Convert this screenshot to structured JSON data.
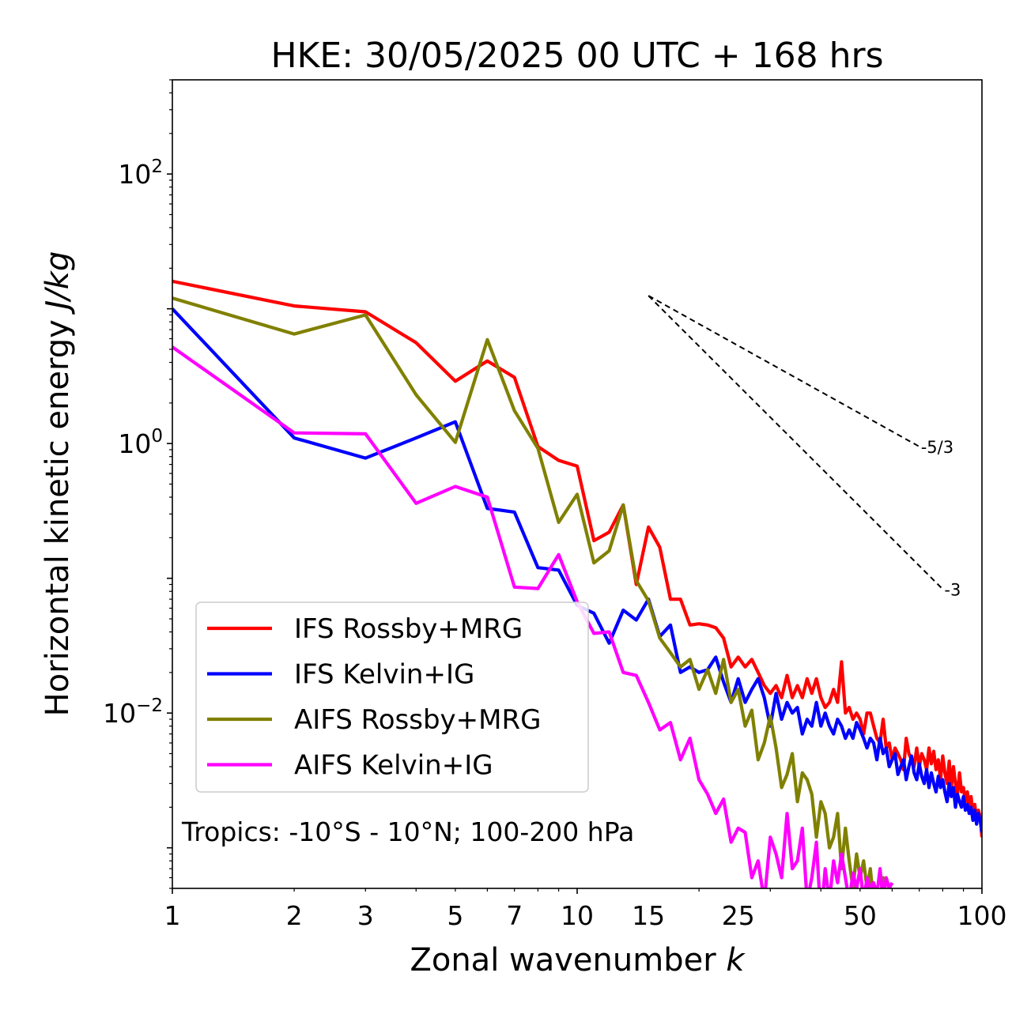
{
  "chart_data": {
    "type": "line",
    "title": "HKE: 30/05/2025 00 UTC + 168 hrs",
    "xlabel": "Zonal wavenumber ",
    "xlabel_italic": "k",
    "ylabel": "Horizontal kinetic energy ",
    "ylabel_italic": "J/kg",
    "x_scale": "log",
    "y_scale": "log",
    "xlim": [
      1,
      100
    ],
    "ylim": [
      0.0005,
      500
    ],
    "x_ticks": [
      {
        "value": 1,
        "label": "1"
      },
      {
        "value": 2,
        "label": "2"
      },
      {
        "value": 3,
        "label": "3"
      },
      {
        "value": 5,
        "label": "5"
      },
      {
        "value": 7,
        "label": "7"
      },
      {
        "value": 10,
        "label": "10"
      },
      {
        "value": 15,
        "label": "15"
      },
      {
        "value": 25,
        "label": "25"
      },
      {
        "value": 50,
        "label": "50"
      },
      {
        "value": 100,
        "label": "100"
      }
    ],
    "y_ticks": [
      {
        "value": 100,
        "base": "10",
        "exp": "2"
      },
      {
        "value": 1,
        "base": "10",
        "exp": "0"
      },
      {
        "value": 0.01,
        "base": "10",
        "exp": "−2"
      }
    ],
    "grid": false,
    "legend_position": "lower-left",
    "annotation": "Tropics: -10°S - 10°N; 100-200 hPa",
    "reference_slopes": [
      {
        "slope": -1.6667,
        "label": "-5/3",
        "x": [
          15,
          70
        ],
        "y": [
          12.5,
          0.95
        ]
      },
      {
        "slope": -3,
        "label": "-3",
        "x": [
          15,
          80
        ],
        "y": [
          12.5,
          0.083
        ]
      }
    ],
    "series": [
      {
        "name": "IFS Rossby+MRG",
        "color": "#ff0000",
        "x": [
          1,
          2,
          3,
          4,
          5,
          6,
          7,
          8,
          9,
          10,
          11,
          12,
          13,
          14,
          15,
          16,
          17,
          18,
          19,
          20,
          21,
          22,
          23,
          24,
          25,
          26,
          27,
          28,
          29,
          30,
          31,
          32,
          33,
          34,
          35,
          36,
          37,
          38,
          39,
          40,
          41,
          42,
          43,
          44,
          45,
          46,
          47,
          48,
          49,
          50,
          51,
          52,
          53,
          54,
          55,
          56,
          57,
          58,
          59,
          60,
          61,
          62,
          63,
          64,
          65,
          66,
          67,
          68,
          69,
          70,
          71,
          72,
          73,
          74,
          75,
          76,
          77,
          78,
          79,
          80,
          81,
          82,
          83,
          84,
          85,
          86,
          87,
          88,
          89,
          90,
          91,
          92,
          93,
          94,
          95,
          96,
          97,
          98,
          99,
          100
        ],
        "y": [
          16,
          10.5,
          9.5,
          5.6,
          2.9,
          4.1,
          3.1,
          0.95,
          0.75,
          0.68,
          0.19,
          0.22,
          0.35,
          0.09,
          0.24,
          0.17,
          0.07,
          0.07,
          0.045,
          0.046,
          0.045,
          0.043,
          0.036,
          0.022,
          0.026,
          0.022,
          0.025,
          0.02,
          0.016,
          0.014,
          0.016,
          0.013,
          0.019,
          0.013,
          0.016,
          0.013,
          0.018,
          0.014,
          0.018,
          0.013,
          0.011,
          0.012,
          0.015,
          0.012,
          0.024,
          0.01,
          0.011,
          0.009,
          0.01,
          0.009,
          0.007,
          0.01,
          0.01,
          0.008,
          0.0065,
          0.006,
          0.009,
          0.0055,
          0.006,
          0.0045,
          0.0055,
          0.005,
          0.0045,
          0.0038,
          0.0065,
          0.005,
          0.0045,
          0.004,
          0.0055,
          0.004,
          0.005,
          0.0045,
          0.0038,
          0.0055,
          0.0042,
          0.0052,
          0.0038,
          0.0045,
          0.0032,
          0.0048,
          0.0036,
          0.003,
          0.0044,
          0.0028,
          0.004,
          0.003,
          0.0025,
          0.0036,
          0.0026,
          0.0028,
          0.0022,
          0.0026,
          0.002,
          0.0024,
          0.0018,
          0.0021,
          0.0016,
          0.0019,
          0.0017,
          0.0012
        ]
      },
      {
        "name": "IFS Kelvin+IG",
        "color": "#0000ff",
        "x": [
          1,
          2,
          3,
          4,
          5,
          6,
          7,
          8,
          9,
          10,
          11,
          12,
          13,
          14,
          15,
          16,
          17,
          18,
          19,
          20,
          21,
          22,
          23,
          24,
          25,
          26,
          27,
          28,
          29,
          30,
          31,
          32,
          33,
          34,
          35,
          36,
          37,
          38,
          39,
          40,
          41,
          42,
          43,
          44,
          45,
          46,
          47,
          48,
          49,
          50,
          51,
          52,
          53,
          54,
          55,
          56,
          57,
          58,
          59,
          60,
          61,
          62,
          63,
          64,
          65,
          66,
          67,
          68,
          69,
          70,
          71,
          72,
          73,
          74,
          75,
          76,
          77,
          78,
          79,
          80,
          81,
          82,
          83,
          84,
          85,
          86,
          87,
          88,
          89,
          90,
          91,
          92,
          93,
          94,
          95,
          96,
          97,
          98,
          99,
          100
        ],
        "y": [
          10,
          1.1,
          0.78,
          1.1,
          1.45,
          0.33,
          0.31,
          0.12,
          0.115,
          0.063,
          0.055,
          0.033,
          0.058,
          0.049,
          0.07,
          0.037,
          0.045,
          0.02,
          0.022,
          0.02,
          0.021,
          0.026,
          0.017,
          0.012,
          0.018,
          0.012,
          0.015,
          0.018,
          0.013,
          0.008,
          0.014,
          0.009,
          0.012,
          0.01,
          0.011,
          0.007,
          0.009,
          0.008,
          0.012,
          0.008,
          0.01,
          0.008,
          0.007,
          0.009,
          0.008,
          0.0065,
          0.0075,
          0.0065,
          0.0085,
          0.0075,
          0.0065,
          0.0055,
          0.0065,
          0.006,
          0.0045,
          0.0065,
          0.005,
          0.0055,
          0.004,
          0.0045,
          0.005,
          0.0035,
          0.004,
          0.0045,
          0.0032,
          0.004,
          0.0048,
          0.0036,
          0.0032,
          0.0042,
          0.0034,
          0.003,
          0.0038,
          0.0028,
          0.0036,
          0.003,
          0.0026,
          0.0034,
          0.0028,
          0.0032,
          0.0026,
          0.0022,
          0.003,
          0.0024,
          0.0028,
          0.002,
          0.0025,
          0.0022,
          0.002,
          0.0024,
          0.0019,
          0.0021,
          0.0018,
          0.002,
          0.0016,
          0.0019,
          0.0015,
          0.0018,
          0.0016,
          0.0013
        ]
      },
      {
        "name": "AIFS Rossby+MRG",
        "color": "#808000",
        "x": [
          1,
          2,
          3,
          4,
          5,
          6,
          7,
          8,
          9,
          10,
          11,
          12,
          13,
          14,
          15,
          16,
          17,
          18,
          19,
          20,
          21,
          22,
          23,
          24,
          25,
          26,
          27,
          28,
          29,
          30,
          31,
          32,
          33,
          34,
          35,
          36,
          37,
          38,
          39,
          40,
          41,
          42,
          43,
          44,
          45,
          46,
          47,
          48,
          49,
          50,
          51,
          52,
          53,
          54,
          55,
          56,
          57,
          58,
          59,
          60
        ],
        "y": [
          12,
          6.5,
          9,
          2.3,
          1.02,
          5.9,
          1.75,
          0.92,
          0.26,
          0.42,
          0.13,
          0.16,
          0.35,
          0.096,
          0.068,
          0.036,
          0.028,
          0.022,
          0.025,
          0.015,
          0.021,
          0.014,
          0.025,
          0.012,
          0.015,
          0.008,
          0.0105,
          0.0045,
          0.006,
          0.0095,
          0.0055,
          0.0028,
          0.0035,
          0.005,
          0.0022,
          0.0036,
          0.0032,
          0.0025,
          0.0012,
          0.0022,
          0.0018,
          0.001,
          0.0012,
          0.0018,
          0.0007,
          0.0014,
          0.0008,
          0.0005,
          0.0009,
          0.0006,
          0.0008,
          0.0005,
          0.0007,
          0.0004,
          0.0005,
          0.0004,
          0.0006,
          0.0003,
          0.0004,
          0.0003
        ]
      },
      {
        "name": "AIFS Kelvin+IG",
        "color": "#ff00ff",
        "x": [
          1,
          2,
          3,
          4,
          5,
          6,
          7,
          8,
          9,
          10,
          11,
          12,
          13,
          14,
          15,
          16,
          17,
          18,
          19,
          20,
          21,
          22,
          23,
          24,
          25,
          26,
          27,
          28,
          29,
          30,
          31,
          32,
          33,
          34,
          35,
          36,
          37,
          38,
          39,
          40,
          41,
          42,
          43,
          44,
          45,
          46,
          47,
          48,
          49,
          50,
          51,
          52,
          53,
          54,
          55,
          56,
          57,
          58,
          59,
          60
        ],
        "y": [
          5.2,
          1.2,
          1.18,
          0.36,
          0.48,
          0.4,
          0.086,
          0.084,
          0.15,
          0.067,
          0.039,
          0.04,
          0.02,
          0.019,
          0.012,
          0.0075,
          0.0085,
          0.0045,
          0.0065,
          0.0032,
          0.0025,
          0.0018,
          0.0023,
          0.0011,
          0.0014,
          0.0013,
          0.0006,
          0.0008,
          0.0004,
          0.0012,
          0.0009,
          0.0006,
          0.0018,
          0.0007,
          0.0008,
          0.0014,
          0.0004,
          0.0006,
          0.0011,
          0.0003,
          0.0007,
          0.0004,
          0.0008,
          0.00055,
          0.0009,
          0.0006,
          0.0004,
          0.00065,
          0.0005,
          0.0007,
          0.0004,
          0.0006,
          0.0005,
          0.00055,
          0.00045,
          0.0007,
          0.0004,
          0.0006,
          0.0005,
          0.00055
        ]
      }
    ]
  }
}
